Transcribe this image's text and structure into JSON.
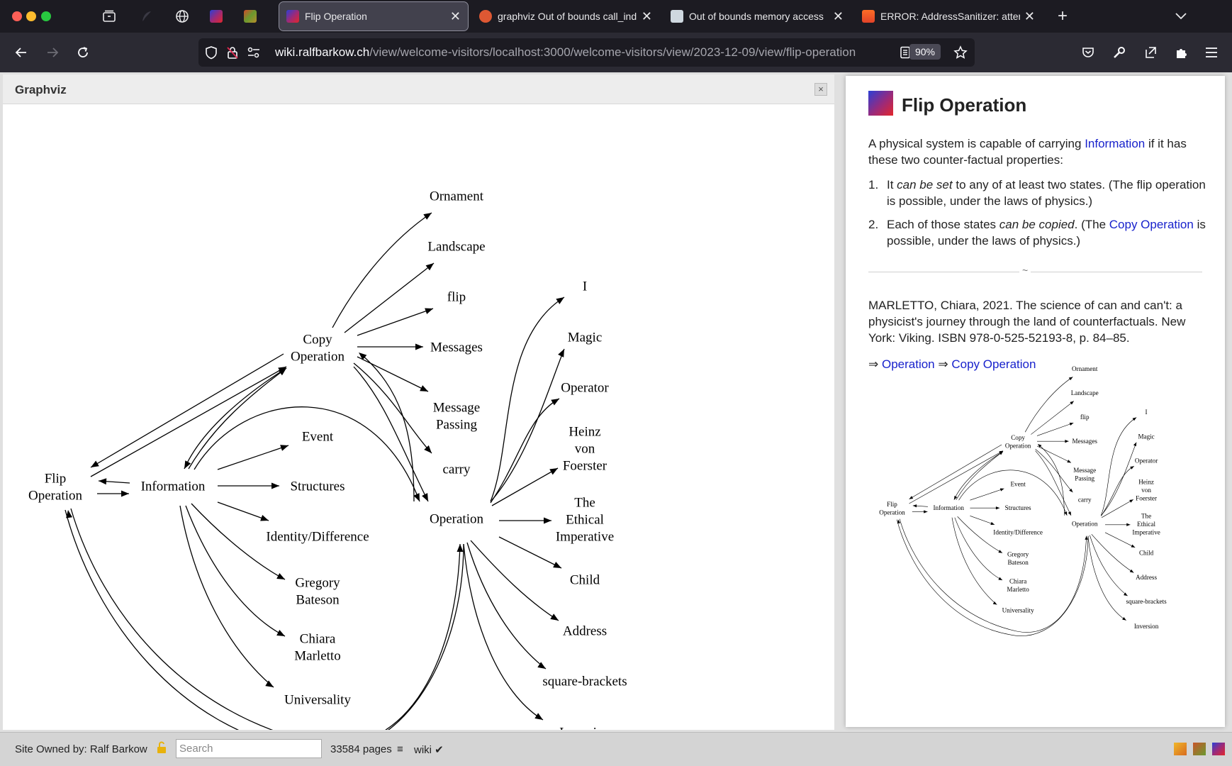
{
  "tabs": [
    {
      "title": "Flip Operation",
      "active": true
    },
    {
      "title": "graphviz Out of bounds call_ind"
    },
    {
      "title": "Out of bounds memory access"
    },
    {
      "title": "ERROR: AddressSanitizer: attem"
    }
  ],
  "navbar": {
    "url_host": "wiki.ralfbarkow.ch",
    "url_path": "/view/welcome-visitors/localhost:3000/welcome-visitors/view/2023-12-09/view/flip-operation",
    "zoom": "90%"
  },
  "graphviz_panel": {
    "title": "Graphviz",
    "close": "×"
  },
  "page": {
    "title": "Flip Operation",
    "intro_before": "A physical system is capable of carrying ",
    "intro_link": "Information",
    "intro_after": " if it has these two counter-factual properties:",
    "item1_num": "1.",
    "item1_pre": "It ",
    "item1_em": "can be set",
    "item1_post": " to any of at least two states. (The flip operation is possible, under the laws of physics.)",
    "item2_num": "2.",
    "item2_pre": "Each of those states ",
    "item2_em": "can be copied",
    "item2_mid": ". (The ",
    "item2_link": "Copy Operation",
    "item2_post": " is possible, under the laws of physics.)",
    "separator": "~",
    "reference": "MARLETTO, Chiara, 2021. The science of can and can't: a physicist's journey through the land of counterfactuals. New York: Viking. ISBN 978-0-525-52193-8, p. 84–85.",
    "arrow1": "⇒",
    "link1": "Operation",
    "arrow2": "⇒",
    "link2": "Copy Operation"
  },
  "graph": {
    "nodes": {
      "flip_op": [
        "Flip",
        "Operation"
      ],
      "information": [
        "Information"
      ],
      "copy_op": [
        "Copy",
        "Operation"
      ],
      "operation": [
        "Operation"
      ],
      "event": [
        "Event"
      ],
      "structures": [
        "Structures"
      ],
      "identity": [
        "Identity/Difference"
      ],
      "bateson": [
        "Gregory",
        "Bateson"
      ],
      "marletto": [
        "Chiara",
        "Marletto"
      ],
      "universality": [
        "Universality"
      ],
      "ornament": [
        "Ornament"
      ],
      "landscape": [
        "Landscape"
      ],
      "flip": [
        "flip"
      ],
      "messages": [
        "Messages"
      ],
      "message_passing": [
        "Message",
        "Passing"
      ],
      "carry": [
        "carry"
      ],
      "i": [
        "I"
      ],
      "magic": [
        "Magic"
      ],
      "operator": [
        "Operator"
      ],
      "foerster": [
        "Heinz",
        "von",
        "Foerster"
      ],
      "ethical": [
        "The",
        "Ethical",
        "Imperative"
      ],
      "child": [
        "Child"
      ],
      "address": [
        "Address"
      ],
      "square_brackets": [
        "square-brackets"
      ],
      "inversion": [
        "Inversion"
      ]
    }
  },
  "footer": {
    "owner": "Site Owned by: Ralf Barkow",
    "search_placeholder": "Search",
    "pages": "33584 pages",
    "menu": "≡",
    "wiki": "wiki ✔"
  }
}
